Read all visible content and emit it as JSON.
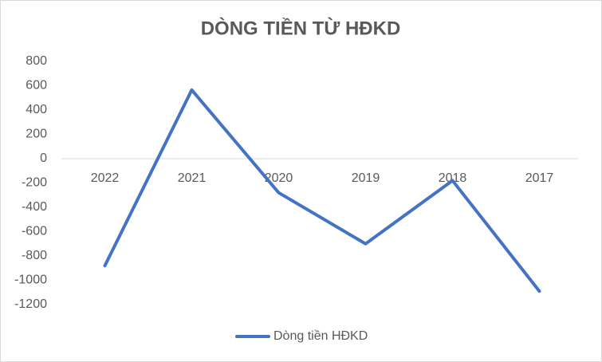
{
  "chart_data": {
    "type": "line",
    "title": "DÒNG TIỀN TỪ HĐKD",
    "categories": [
      "2022",
      "2021",
      "2020",
      "2019",
      "2018",
      "2017"
    ],
    "series": [
      {
        "name": "Dòng tiền HĐKD",
        "color": "#4472c4",
        "values": [
          -880,
          565,
          -280,
          -700,
          -180,
          -1090
        ]
      }
    ],
    "ylim": [
      -1200,
      800
    ],
    "yticks": [
      -1200,
      -1000,
      -800,
      -600,
      -400,
      -200,
      0,
      200,
      400,
      600,
      800
    ],
    "grid": false,
    "legend": "bottom"
  }
}
